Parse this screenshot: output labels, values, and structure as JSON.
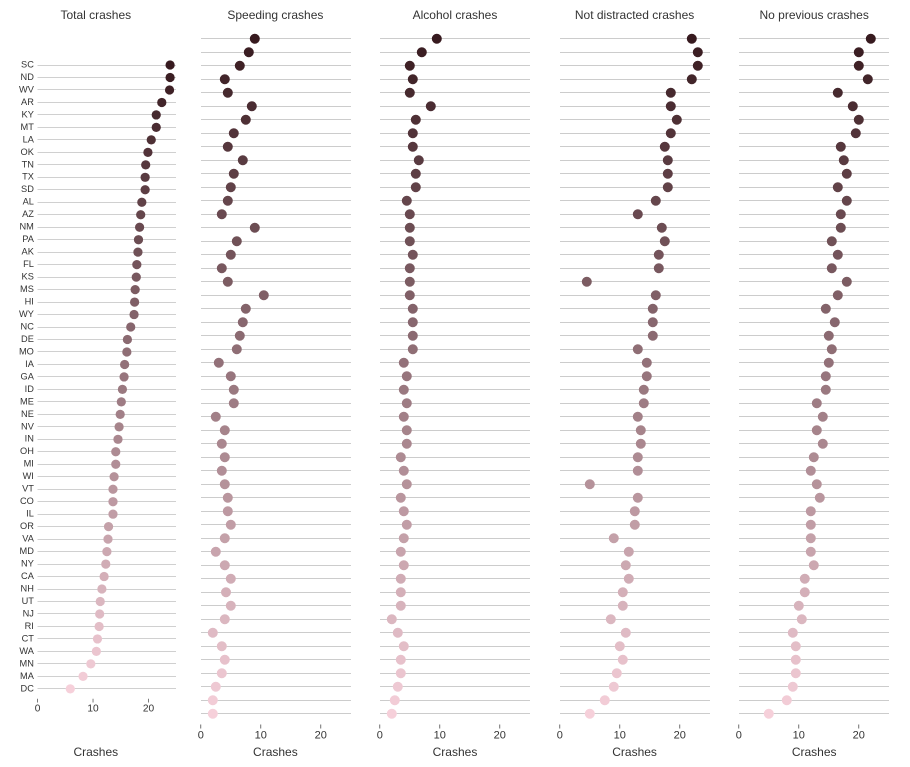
{
  "chart": {
    "type": "small-multiples-dot-plot",
    "background_color": "#ffffff",
    "grid_color": "#999999",
    "axis_color": "#333333",
    "text_color": "#333333",
    "title_fontsize": 12,
    "ylabel_fontsize": 10,
    "xlabel_fontsize": 12,
    "xlabel": "Crashes",
    "xlim": [
      0,
      25
    ],
    "xtick_step": 10,
    "marker_size": 5,
    "row_height": 13.5,
    "panel_plot_width": 150,
    "panel_plot_height": 688,
    "left_margin_first": 32,
    "left_margin_other": 8,
    "states": [
      "SC",
      "ND",
      "WV",
      "AR",
      "KY",
      "MT",
      "LA",
      "OK",
      "TN",
      "TX",
      "SD",
      "AL",
      "AZ",
      "NM",
      "PA",
      "AK",
      "FL",
      "KS",
      "MS",
      "HI",
      "WY",
      "NC",
      "DE",
      "MO",
      "IA",
      "GA",
      "ID",
      "ME",
      "NE",
      "NV",
      "IN",
      "OH",
      "MI",
      "WI",
      "VT",
      "CO",
      "IL",
      "OR",
      "VA",
      "MD",
      "NY",
      "CA",
      "NH",
      "UT",
      "NJ",
      "RI",
      "CT",
      "WA",
      "MN",
      "MA",
      "DC"
    ],
    "panels": [
      {
        "title": "Total crashes",
        "values": [
          23.9,
          23.9,
          23.8,
          22.4,
          21.4,
          21.4,
          20.5,
          19.9,
          19.5,
          19.4,
          19.4,
          18.8,
          18.6,
          18.4,
          18.2,
          18.1,
          17.9,
          17.8,
          17.6,
          17.5,
          17.4,
          16.8,
          16.2,
          16.1,
          15.7,
          15.6,
          15.3,
          15.1,
          14.9,
          14.7,
          14.5,
          14.1,
          14.1,
          13.8,
          13.6,
          13.6,
          13.6,
          12.8,
          12.7,
          12.5,
          12.3,
          12.0,
          11.6,
          11.3,
          11.2,
          11.1,
          10.8,
          10.6,
          9.6,
          8.2,
          5.9
        ]
      },
      {
        "title": "Speeding crashes",
        "values": [
          9.0,
          8.0,
          6.5,
          4.0,
          4.5,
          8.5,
          7.5,
          5.5,
          4.5,
          7.0,
          5.5,
          5.0,
          4.5,
          3.5,
          9.0,
          6.0,
          5.0,
          3.5,
          4.5,
          10.5,
          7.5,
          7.0,
          6.5,
          6.0,
          3.0,
          5.0,
          5.5,
          5.5,
          2.5,
          4.0,
          3.5,
          4.0,
          3.5,
          4.0,
          4.5,
          4.5,
          5.0,
          4.0,
          2.5,
          4.0,
          5.0,
          4.2,
          5.0,
          4.0,
          2.0,
          3.5,
          4.0,
          3.5,
          2.5,
          2.0,
          2.0
        ]
      },
      {
        "title": "Alcohol crashes",
        "values": [
          9.5,
          7.0,
          5.0,
          5.5,
          5.0,
          8.5,
          6.0,
          5.5,
          5.5,
          6.5,
          6.0,
          6.0,
          4.5,
          5.0,
          5.0,
          5.0,
          5.5,
          5.0,
          5.0,
          5.0,
          5.5,
          5.5,
          5.5,
          5.5,
          4.0,
          4.5,
          4.0,
          4.5,
          4.0,
          4.5,
          4.5,
          3.5,
          4.0,
          4.5,
          3.5,
          4.0,
          4.5,
          4.0,
          3.5,
          4.0,
          3.5,
          3.5,
          3.5,
          2.0,
          3.0,
          4.0,
          3.5,
          3.5,
          3.0,
          2.5,
          2.0
        ]
      },
      {
        "title": "Not distracted crashes",
        "values": [
          22.0,
          23.0,
          23.0,
          22.0,
          18.5,
          18.5,
          19.5,
          18.5,
          17.5,
          18.0,
          18.0,
          18.0,
          16.0,
          13.0,
          17.0,
          17.5,
          16.5,
          16.5,
          4.5,
          16.0,
          15.5,
          15.5,
          15.5,
          13.0,
          14.5,
          14.5,
          14.0,
          14.0,
          13.0,
          13.5,
          13.5,
          13.0,
          13.0,
          5.0,
          13.0,
          12.5,
          12.5,
          9.0,
          11.5,
          11.0,
          11.5,
          10.5,
          10.5,
          8.5,
          11.0,
          10.0,
          10.5,
          9.5,
          9.0,
          7.5,
          5.0
        ]
      },
      {
        "title": "No previous crashes",
        "values": [
          22.0,
          20.0,
          20.0,
          21.5,
          16.5,
          19.0,
          20.0,
          19.5,
          17.0,
          17.5,
          18.0,
          16.5,
          18.0,
          17.0,
          17.0,
          15.5,
          16.5,
          15.5,
          18.0,
          16.5,
          14.5,
          16.0,
          15.0,
          15.5,
          15.0,
          14.5,
          14.5,
          13.0,
          14.0,
          13.0,
          14.0,
          12.5,
          12.0,
          13.0,
          13.5,
          12.0,
          12.0,
          12.0,
          12.0,
          12.5,
          11.0,
          11.0,
          10.0,
          10.5,
          9.0,
          9.5,
          9.5,
          9.5,
          9.0,
          8.0,
          5.0
        ]
      }
    ],
    "color_range": {
      "start": "#371a1f",
      "end": "#f6d0da"
    }
  }
}
